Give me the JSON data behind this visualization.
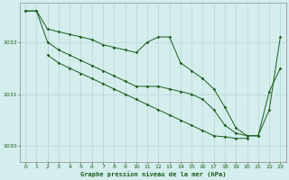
{
  "title": "Graphe pression niveau de la mer (hPa)",
  "background_color": "#d4eeee",
  "grid_color": "#b8d4d4",
  "line_color": "#1a5c1a",
  "ylim": [
    1029.7,
    1032.75
  ],
  "yticks": [
    1030,
    1031,
    1032
  ],
  "xlim": [
    -0.5,
    23.5
  ],
  "xticks": [
    0,
    1,
    2,
    3,
    4,
    5,
    6,
    7,
    8,
    9,
    10,
    11,
    12,
    13,
    14,
    15,
    16,
    17,
    18,
    19,
    20,
    21,
    22,
    23
  ],
  "line1_x": [
    0,
    1,
    2,
    3,
    4,
    5,
    6,
    7,
    8,
    9,
    10,
    11,
    12,
    13,
    14,
    15,
    16,
    17,
    18,
    19,
    20,
    21,
    22,
    23
  ],
  "line1_y": [
    1032.6,
    1032.6,
    1032.25,
    1032.2,
    1032.15,
    1032.1,
    1032.05,
    1031.95,
    1031.9,
    1031.85,
    1031.8,
    1032.0,
    1032.1,
    1032.1,
    1031.6,
    1031.45,
    1031.3,
    1031.1,
    1030.75,
    1030.35,
    1030.2,
    1030.2,
    1031.05,
    1031.5
  ],
  "line2_x": [
    0,
    1,
    2,
    3,
    4,
    5,
    6,
    7,
    8,
    9,
    10,
    11,
    12,
    13,
    14,
    15,
    16,
    17,
    18,
    19,
    20,
    21,
    22,
    23
  ],
  "line2_y": [
    1032.6,
    1032.6,
    1032.0,
    1031.85,
    1031.75,
    1031.65,
    1031.55,
    1031.45,
    1031.35,
    1031.25,
    1031.15,
    1031.15,
    1031.15,
    1031.1,
    1031.05,
    1031.0,
    1030.9,
    1030.7,
    1030.4,
    1030.25,
    1030.2,
    1030.2,
    1030.7,
    1032.1
  ],
  "line3_x": [
    2,
    3,
    4,
    5,
    6,
    7,
    8,
    9,
    10,
    11,
    12,
    13,
    14,
    15,
    16,
    17,
    18,
    19,
    20
  ],
  "line3_y": [
    1031.75,
    1031.6,
    1031.5,
    1031.4,
    1031.3,
    1031.2,
    1031.1,
    1031.0,
    1030.9,
    1030.8,
    1030.7,
    1030.6,
    1030.5,
    1030.4,
    1030.3,
    1030.2,
    1030.18,
    1030.15,
    1030.15
  ]
}
